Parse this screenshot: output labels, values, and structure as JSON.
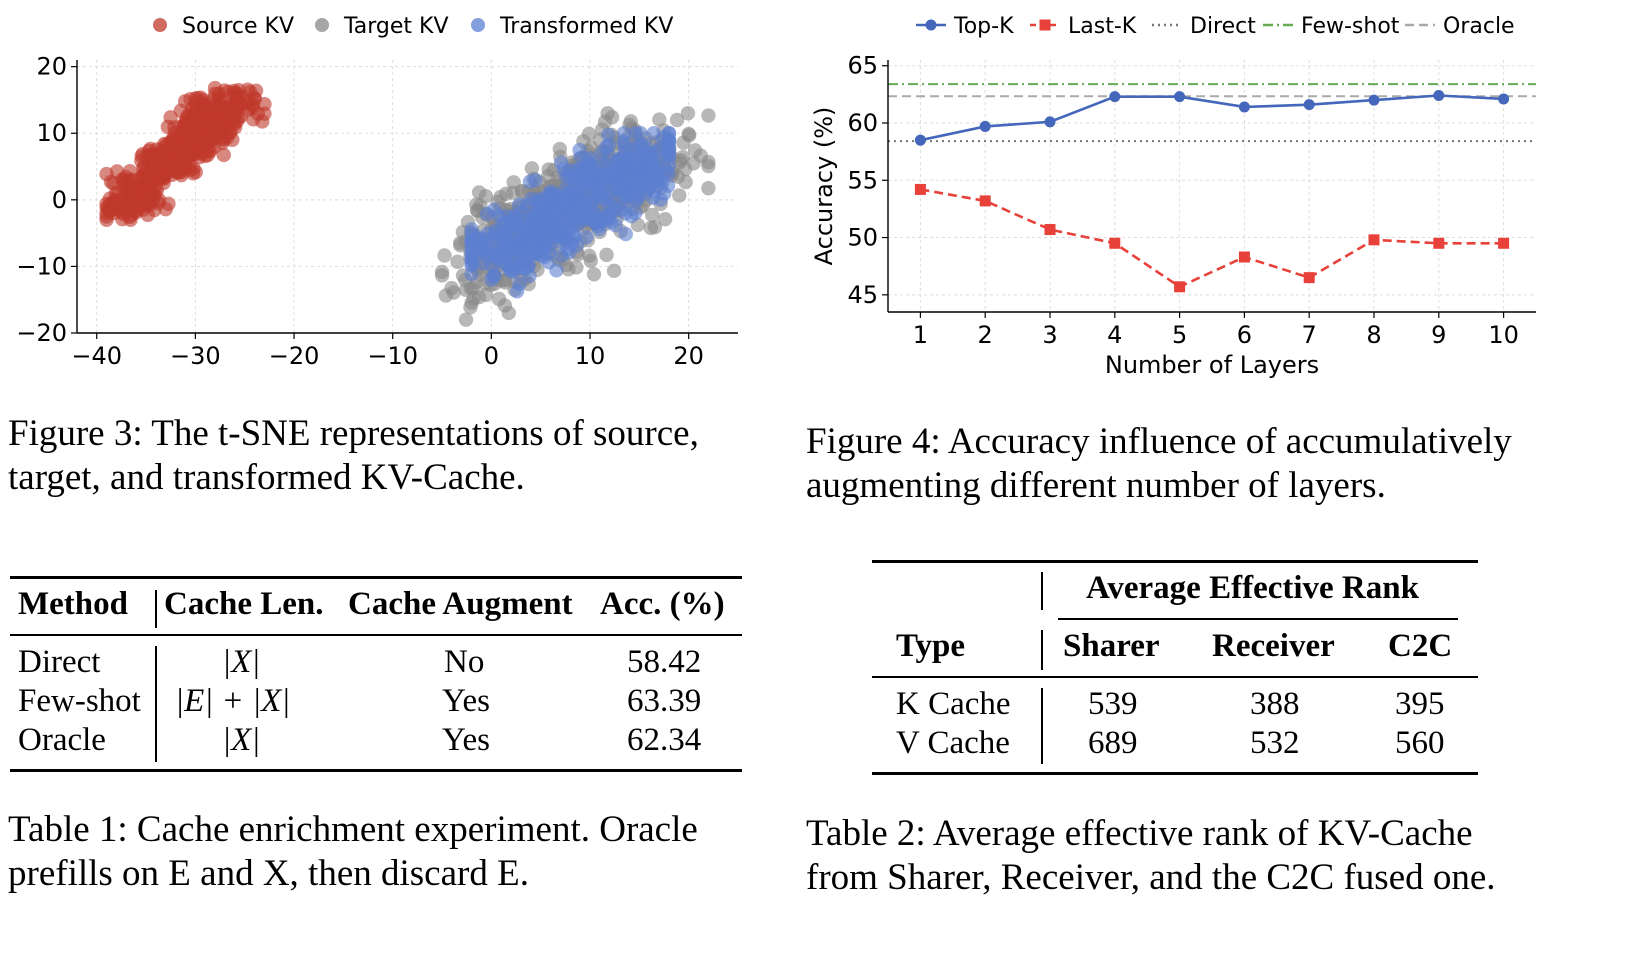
{
  "figure3": {
    "caption": "Figure 3: The t-SNE representations of source, target, and transformed KV-Cache.",
    "caption_lines": [
      "Figure 3: The t-SNE representations of source,",
      "target, and transformed KV-Cache."
    ],
    "chart_data": {
      "type": "scatter",
      "title": "",
      "xlabel": "",
      "ylabel": "",
      "xlim": [
        -42,
        25
      ],
      "ylim": [
        -20,
        21
      ],
      "x_ticks": [
        "−40",
        "−30",
        "−20",
        "−10",
        "0",
        "10",
        "20"
      ],
      "x_tick_values": [
        -40,
        -30,
        -20,
        -10,
        0,
        10,
        20
      ],
      "y_ticks": [
        "20",
        "10",
        "0",
        "−10",
        "−20"
      ],
      "y_tick_values": [
        20,
        10,
        0,
        -10,
        -20
      ],
      "grid": true,
      "legend_position": "top-center",
      "series": [
        {
          "name": "Source KV",
          "color": "#c0392b",
          "x_range": [
            -39,
            -23
          ],
          "y_range": [
            -3,
            19
          ]
        },
        {
          "name": "Target KV",
          "color": "#888888",
          "x_range": [
            -5,
            22
          ],
          "y_range": [
            -18,
            13
          ]
        },
        {
          "name": "Transformed KV",
          "color": "#5b7fd1",
          "x_range": [
            -2,
            18
          ],
          "y_range": [
            -18,
            10
          ]
        }
      ]
    }
  },
  "figure4": {
    "caption_lines": [
      "Figure 4: Accuracy influence of accumulatively",
      "augmenting different number of layers."
    ],
    "chart_data": {
      "type": "line",
      "title": "",
      "xlabel": "Number of Layers",
      "ylabel": "Accuracy (%)",
      "x": [
        1,
        2,
        3,
        4,
        5,
        6,
        7,
        8,
        9,
        10
      ],
      "ylim": [
        43.5,
        65.5
      ],
      "y_ticks": [
        45,
        50,
        55,
        60,
        65
      ],
      "grid": true,
      "legend_position": "top",
      "series": [
        {
          "name": "Top-K",
          "color": "#4466bb",
          "marker": "circle",
          "style": "solid",
          "values": [
            58.5,
            59.7,
            60.1,
            62.3,
            62.3,
            61.4,
            61.6,
            62.0,
            62.4,
            62.1
          ]
        },
        {
          "name": "Last-K",
          "color": "#e8413a",
          "marker": "square",
          "style": "dashed",
          "values": [
            54.2,
            53.2,
            50.7,
            49.5,
            45.7,
            48.3,
            46.5,
            49.8,
            49.5,
            49.5
          ]
        }
      ],
      "reference_lines": [
        {
          "name": "Direct",
          "value": 58.42,
          "color": "#777777",
          "style": "dotted"
        },
        {
          "name": "Few-shot",
          "value": 63.39,
          "color": "#66aa55",
          "style": "dashdot"
        },
        {
          "name": "Oracle",
          "value": 62.34,
          "color": "#aaaaaa",
          "style": "dashed"
        }
      ]
    }
  },
  "table1": {
    "headers": [
      "Method",
      "Cache Len.",
      "Cache Augment",
      "Acc. (%)"
    ],
    "rows": [
      [
        "Direct",
        "|X|",
        "No",
        "58.42"
      ],
      [
        "Few-shot",
        "|E| + |X|",
        "Yes",
        "63.39"
      ],
      [
        "Oracle",
        "|X|",
        "Yes",
        "62.34"
      ]
    ],
    "caption_lines": [
      "Table 1: Cache enrichment experiment. Oracle",
      "prefills on E and X, then discard E."
    ]
  },
  "table2": {
    "group_header": "Average Effective Rank",
    "headers": [
      "Type",
      "Sharer",
      "Receiver",
      "C2C"
    ],
    "rows": [
      [
        "K Cache",
        "539",
        "388",
        "395"
      ],
      [
        "V Cache",
        "689",
        "532",
        "560"
      ]
    ],
    "caption_lines": [
      "Table 2:  Average effective rank of KV-Cache",
      "from Sharer, Receiver, and the C2C fused one."
    ]
  }
}
